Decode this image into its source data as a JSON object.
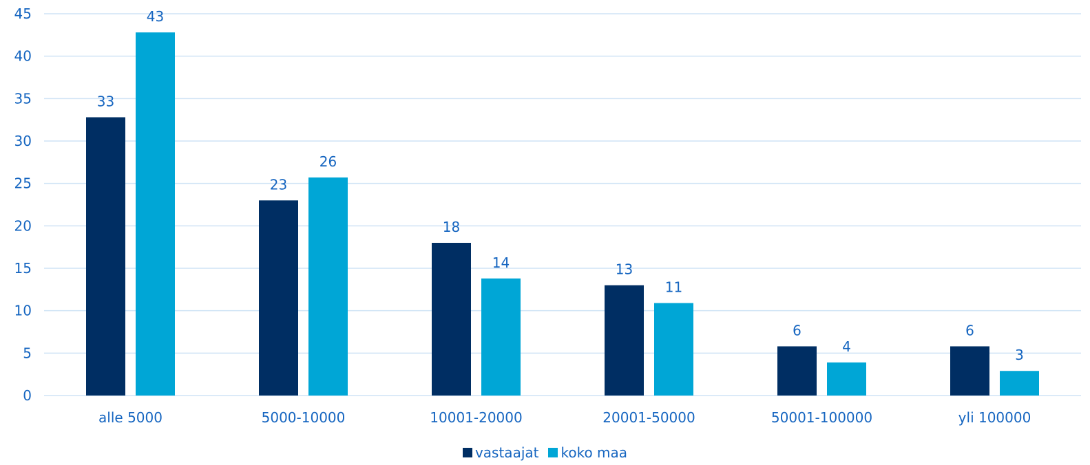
{
  "chart_data": {
    "type": "bar",
    "categories": [
      "alle 5000",
      "5000-10000",
      "10001-20000",
      "20001-50000",
      "50001-100000",
      "yli 100000"
    ],
    "series": [
      {
        "name": "vastaajat",
        "color": "#002e63",
        "values": [
          32.8,
          23.0,
          18.0,
          13.0,
          5.8,
          5.8
        ],
        "labels": [
          "33",
          "23",
          "18",
          "13",
          "6",
          "6"
        ]
      },
      {
        "name": "koko maa",
        "color": "#00a6d6",
        "values": [
          42.8,
          25.7,
          13.8,
          10.9,
          3.9,
          2.9
        ],
        "labels": [
          "43",
          "26",
          "14",
          "11",
          "4",
          "3"
        ]
      }
    ],
    "ylim": [
      0,
      45
    ],
    "yticks": [
      0,
      5,
      10,
      15,
      20,
      25,
      30,
      35,
      40,
      45
    ],
    "grid": true,
    "legend_position": "bottom"
  },
  "legend": {
    "series1": "vastaajat",
    "series2": "koko maa"
  }
}
